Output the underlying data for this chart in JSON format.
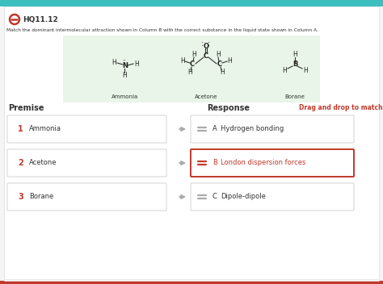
{
  "bg_color": "#f5f5f5",
  "header_bg": "#3bbfbf",
  "bottom_bar_color": "#c0392b",
  "question_id": "HQ11.12",
  "icon_color": "#c0392b",
  "instruction": "Match the dominant intermolecular attraction shown in Column B with the correct substance in the liquid state shown in Column A.",
  "molecule_bg": "#e8f5e8",
  "premise_label": "Premise",
  "response_label": "Response",
  "drag_label": "Drag and drop to match",
  "drag_color": "#c0392b",
  "premise_items": [
    {
      "num": "1",
      "name": "Ammonia"
    },
    {
      "num": "2",
      "name": "Acetone"
    },
    {
      "num": "3",
      "name": "Borane"
    }
  ],
  "response_items": [
    {
      "letter": "A",
      "text": "Hydrogen bonding",
      "highlighted": false
    },
    {
      "letter": "B",
      "text": "London dispersion forces",
      "highlighted": true
    },
    {
      "letter": "C",
      "text": "Dipole-dipole",
      "highlighted": false
    }
  ],
  "highlight_color": "#c0392b",
  "text_dark": "#333333",
  "arrow_color": "#aaaaaa",
  "eq_gray": "#aaaaaa",
  "eq_red": "#c0392b",
  "num_color": "#c0392b",
  "response_text_highlighted": "#c0392b",
  "response_text_normal": "#333333",
  "outer_border": "#cccccc",
  "white": "#ffffff",
  "letter_color": "#c0392b"
}
